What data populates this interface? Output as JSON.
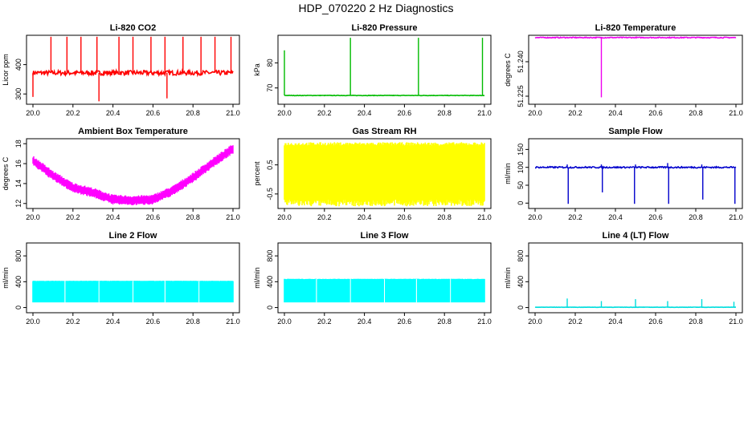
{
  "title": "HDP_070220  2 Hz Diagnostics",
  "chart_data": [
    {
      "type": "line",
      "title": "Li-820 CO2",
      "ylabel": "Licor ppm",
      "color": "#ff0000",
      "xlim": [
        20.0,
        21.0
      ],
      "ylim": [
        265,
        500
      ],
      "xticks": [
        "20.0",
        "20.2",
        "20.4",
        "20.6",
        "20.8",
        "21.0"
      ],
      "yticks": [
        300,
        400
      ],
      "series": [
        {
          "baseline": 372,
          "noise": 8,
          "spikes_up": [
            [
              20.09,
              495
            ],
            [
              20.17,
              495
            ],
            [
              20.24,
              495
            ],
            [
              20.32,
              495
            ],
            [
              20.43,
              495
            ],
            [
              20.5,
              495
            ],
            [
              20.59,
              495
            ],
            [
              20.66,
              495
            ],
            [
              20.75,
              495
            ],
            [
              20.84,
              495
            ],
            [
              20.91,
              495
            ],
            [
              20.99,
              495
            ]
          ],
          "spikes_down": [
            [
              20.0,
              290
            ],
            [
              20.33,
              275
            ],
            [
              20.67,
              285
            ]
          ]
        }
      ]
    },
    {
      "type": "line",
      "title": "Li-820 Pressure",
      "ylabel": "kPa",
      "color": "#00bb00",
      "xlim": [
        20.0,
        21.0
      ],
      "ylim": [
        63.5,
        91
      ],
      "xticks": [
        "20.0",
        "20.2",
        "20.4",
        "20.6",
        "20.8",
        "21.0"
      ],
      "yticks": [
        70,
        80
      ],
      "series": [
        {
          "baseline": 67.0,
          "noise": 0.1,
          "spikes_up": [
            [
              20.0,
              85
            ],
            [
              20.33,
              90
            ],
            [
              20.67,
              90
            ],
            [
              20.99,
              90
            ]
          ],
          "spikes_down": []
        }
      ]
    },
    {
      "type": "line",
      "title": "Li-820 Temperature",
      "ylabel": "degrees C",
      "color": "#ee00ee",
      "xlim": [
        20.0,
        21.0
      ],
      "ylim": [
        51.2215,
        51.2515
      ],
      "xticks": [
        "20.0",
        "20.2",
        "20.4",
        "20.6",
        "20.8",
        "21.0"
      ],
      "yticks": [
        51.225,
        51.24
      ],
      "ytick_labels": [
        "51.225",
        "51.240"
      ],
      "series": [
        {
          "baseline": 51.2505,
          "noise": 0.0002,
          "spikes_up": [],
          "spikes_down": [
            [
              20.33,
              51.2245
            ]
          ]
        }
      ]
    },
    {
      "type": "line",
      "title": "Ambient Box Temperature",
      "ylabel": "degrees C",
      "color": "#ff00ff",
      "xlim": [
        20.0,
        21.0
      ],
      "ylim": [
        11.5,
        18.5
      ],
      "xticks": [
        "20.0",
        "20.2",
        "20.4",
        "20.6",
        "20.8",
        "21.0"
      ],
      "yticks": [
        12,
        14,
        16,
        18
      ],
      "series": [
        {
          "curve": [
            [
              20.0,
              16.3
            ],
            [
              20.1,
              14.8
            ],
            [
              20.2,
              13.6
            ],
            [
              20.3,
              13.1
            ],
            [
              20.4,
              12.4
            ],
            [
              20.5,
              12.3
            ],
            [
              20.6,
              12.4
            ],
            [
              20.7,
              13.3
            ],
            [
              20.8,
              14.6
            ],
            [
              20.9,
              16.1
            ],
            [
              21.0,
              17.5
            ]
          ],
          "band": 0.5
        }
      ]
    },
    {
      "type": "area",
      "title": "Gas Stream RH",
      "ylabel": "percent",
      "color": "#ffff00",
      "xlim": [
        20.0,
        21.0
      ],
      "ylim": [
        -1.0,
        1.4
      ],
      "xticks": [
        "20.0",
        "20.2",
        "20.4",
        "20.6",
        "20.8",
        "21.0"
      ],
      "yticks": [
        -0.5,
        0.5
      ],
      "ytick_labels": [
        "-0.5",
        "0.5"
      ],
      "series": [
        {
          "band_low": -0.7,
          "band_high": 1.2
        }
      ]
    },
    {
      "type": "line",
      "title": "Sample Flow",
      "ylabel": "ml/min",
      "color": "#0000cc",
      "xlim": [
        20.0,
        21.0
      ],
      "ylim": [
        -15,
        180
      ],
      "xticks": [
        "20.0",
        "20.2",
        "20.4",
        "20.6",
        "20.8",
        "21.0"
      ],
      "yticks": [
        0,
        50,
        100,
        150
      ],
      "series": [
        {
          "baseline": 100,
          "noise": 2,
          "spikes_up": [
            [
              20.16,
              108
            ],
            [
              20.33,
              108
            ],
            [
              20.5,
              108
            ],
            [
              20.66,
              112
            ],
            [
              20.83,
              108
            ]
          ],
          "spikes_down": [
            [
              20.165,
              -2
            ],
            [
              20.335,
              30
            ],
            [
              20.495,
              -2
            ],
            [
              20.665,
              -2
            ],
            [
              20.835,
              10
            ],
            [
              20.995,
              -2
            ]
          ]
        }
      ]
    },
    {
      "type": "area",
      "title": "Line 2 Flow",
      "ylabel": "ml/min",
      "color": "#00ffff",
      "xlim": [
        20.0,
        21.0
      ],
      "ylim": [
        -80,
        1000
      ],
      "xticks": [
        "20.0",
        "20.2",
        "20.4",
        "20.6",
        "20.8",
        "21.0"
      ],
      "yticks": [
        0,
        400,
        800
      ],
      "series": [
        {
          "band_low": 80,
          "band_high": 410,
          "gaps": [
            20.16,
            20.33,
            20.5,
            20.66,
            20.83
          ]
        }
      ]
    },
    {
      "type": "area",
      "title": "Line 3 Flow",
      "ylabel": "ml/min",
      "color": "#00ffff",
      "xlim": [
        20.0,
        21.0
      ],
      "ylim": [
        -80,
        1000
      ],
      "xticks": [
        "20.0",
        "20.2",
        "20.4",
        "20.6",
        "20.8",
        "21.0"
      ],
      "yticks": [
        0,
        400,
        800
      ],
      "series": [
        {
          "band_low": 80,
          "band_high": 440,
          "gaps": [
            20.16,
            20.33,
            20.5,
            20.66,
            20.83
          ]
        }
      ]
    },
    {
      "type": "line",
      "title": "Line 4 (LT) Flow",
      "ylabel": "ml/min",
      "color": "#00dddd",
      "xlim": [
        20.0,
        21.0
      ],
      "ylim": [
        -80,
        1000
      ],
      "xticks": [
        "20.0",
        "20.2",
        "20.4",
        "20.6",
        "20.8",
        "21.0"
      ],
      "yticks": [
        0,
        400,
        800
      ],
      "series": [
        {
          "baseline": 5,
          "noise": 2,
          "spikes_up": [
            [
              20.16,
              140
            ],
            [
              20.33,
              100
            ],
            [
              20.5,
              130
            ],
            [
              20.66,
              100
            ],
            [
              20.83,
              130
            ],
            [
              20.99,
              90
            ]
          ],
          "spikes_down": []
        }
      ]
    }
  ]
}
